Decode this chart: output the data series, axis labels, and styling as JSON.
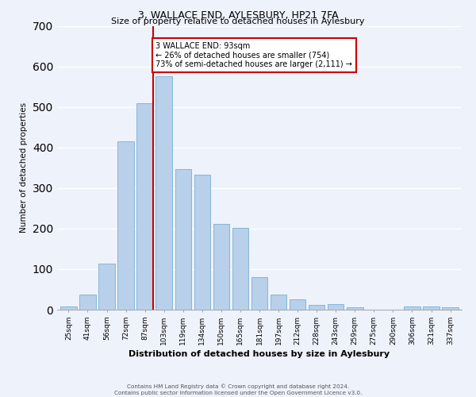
{
  "title": "3, WALLACE END, AYLESBURY, HP21 7FA",
  "subtitle": "Size of property relative to detached houses in Aylesbury",
  "xlabel": "Distribution of detached houses by size in Aylesbury",
  "ylabel": "Number of detached properties",
  "categories": [
    "25sqm",
    "41sqm",
    "56sqm",
    "72sqm",
    "87sqm",
    "103sqm",
    "119sqm",
    "134sqm",
    "150sqm",
    "165sqm",
    "181sqm",
    "197sqm",
    "212sqm",
    "228sqm",
    "243sqm",
    "259sqm",
    "275sqm",
    "290sqm",
    "306sqm",
    "321sqm",
    "337sqm"
  ],
  "values": [
    8,
    38,
    113,
    415,
    510,
    575,
    347,
    332,
    211,
    201,
    80,
    38,
    25,
    12,
    14,
    5,
    0,
    0,
    8,
    8,
    5
  ],
  "bar_color": "#b8d0ea",
  "bar_edge_color": "#7aafd4",
  "ylim": [
    0,
    700
  ],
  "yticks": [
    0,
    100,
    200,
    300,
    400,
    500,
    600,
    700
  ],
  "property_line_idx": 4,
  "property_line_label": "3 WALLACE END: 93sqm",
  "annotation_line1": "← 26% of detached houses are smaller (754)",
  "annotation_line2": "73% of semi-detached houses are larger (2,111) →",
  "red_line_color": "#cc0000",
  "annotation_rect_color": "#cc0000",
  "footnote1": "Contains HM Land Registry data © Crown copyright and database right 2024.",
  "footnote2": "Contains public sector information licensed under the Open Government Licence v3.0.",
  "bg_color": "#eef2fb",
  "grid_color": "#ffffff",
  "bar_width": 0.85,
  "title_fontsize": 9,
  "subtitle_fontsize": 8.5
}
